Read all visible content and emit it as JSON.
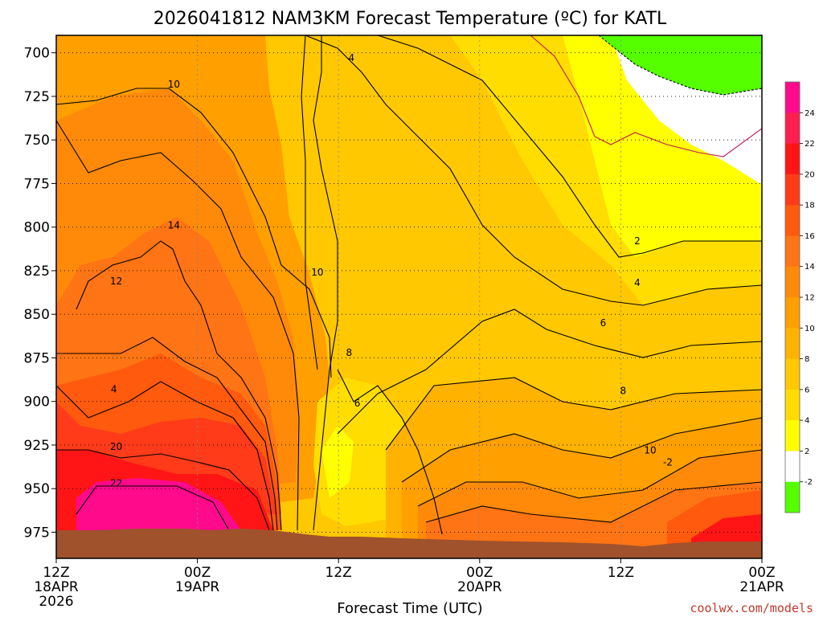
{
  "chart_data": {
    "type": "heatmap",
    "title": "2026041812 NAM3KM Forecast Temperature (ºC) for KATL",
    "xlabel": "Forecast Time (UTC)",
    "ylabel": "",
    "credit": "coolwx.com/models",
    "x_ticks": [
      {
        "hour": 0,
        "lines": [
          "12Z",
          "18APR",
          "2026"
        ]
      },
      {
        "hour": 12,
        "lines": [
          "00Z",
          "19APR"
        ]
      },
      {
        "hour": 24,
        "lines": [
          "12Z"
        ]
      },
      {
        "hour": 36,
        "lines": [
          "00Z",
          "20APR"
        ]
      },
      {
        "hour": 48,
        "lines": [
          "12Z"
        ]
      },
      {
        "hour": 60,
        "lines": [
          "00Z",
          "21APR"
        ]
      }
    ],
    "xlim": [
      0,
      60
    ],
    "ylim": [
      690,
      990
    ],
    "y_ticks": [
      700,
      725,
      750,
      775,
      800,
      825,
      850,
      875,
      900,
      925,
      950,
      975
    ],
    "colorbar": {
      "ticks": [
        "24",
        "22",
        "20",
        "18",
        "16",
        "14",
        "12",
        "10",
        "8",
        "6",
        "4",
        "2",
        "-2"
      ],
      "colors": [
        "#ff0a8a",
        "#ff1f4e",
        "#ff1515",
        "#ff3b1a",
        "#ff5a0d",
        "#ff7414",
        "#ff8a0a",
        "#ff9f00",
        "#ffb200",
        "#ffc800",
        "#ffdd00",
        "#ffff00",
        "#ffffff",
        "#55ff00"
      ]
    },
    "contour_labels": [
      {
        "hour": 4.9,
        "p": 893,
        "text": "4"
      },
      {
        "hour": 10,
        "p": 718,
        "text": "10"
      },
      {
        "hour": 10,
        "p": 799,
        "text": "14"
      },
      {
        "hour": 5.1,
        "p": 831,
        "text": "12"
      },
      {
        "hour": 22.2,
        "p": 826,
        "text": "10"
      },
      {
        "hour": 24.9,
        "p": 872,
        "text": "8"
      },
      {
        "hour": 25.6,
        "p": 901,
        "text": "6"
      },
      {
        "hour": 5.1,
        "p": 926,
        "text": "20"
      },
      {
        "hour": 5.1,
        "p": 947,
        "text": "22"
      },
      {
        "hour": 46.5,
        "p": 855,
        "text": "6"
      },
      {
        "hour": 48.2,
        "p": 894,
        "text": "8"
      },
      {
        "hour": 50.5,
        "p": 928,
        "text": "10"
      },
      {
        "hour": 49.4,
        "p": 808,
        "text": "2"
      },
      {
        "hour": 49.4,
        "p": 832,
        "text": "4"
      },
      {
        "hour": 25.1,
        "p": 703,
        "text": "4"
      },
      {
        "hour": 52,
        "p": 935,
        "text": "-2"
      }
    ]
  }
}
